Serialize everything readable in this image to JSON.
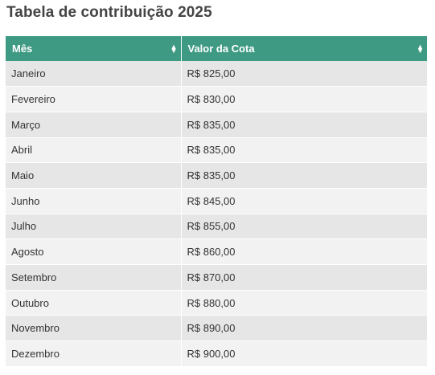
{
  "title": "Tabela de contribuição 2025",
  "table": {
    "headers": [
      "Mês",
      "Valor da Cota"
    ],
    "rows": [
      {
        "mes": "Janeiro",
        "valor": "R$ 825,00"
      },
      {
        "mes": "Fevereiro",
        "valor": "R$ 830,00"
      },
      {
        "mes": "Março",
        "valor": "R$ 835,00"
      },
      {
        "mes": "Abril",
        "valor": "R$ 835,00"
      },
      {
        "mes": "Maio",
        "valor": "R$ 835,00"
      },
      {
        "mes": "Junho",
        "valor": "R$ 845,00"
      },
      {
        "mes": "Julho",
        "valor": "R$ 855,00"
      },
      {
        "mes": "Agosto",
        "valor": "R$ 860,00"
      },
      {
        "mes": "Setembro",
        "valor": "R$ 870,00"
      },
      {
        "mes": "Outubro",
        "valor": "R$ 880,00"
      },
      {
        "mes": "Novembro",
        "valor": "R$ 890,00"
      },
      {
        "mes": "Dezembro",
        "valor": "R$ 900,00"
      }
    ]
  },
  "icons": {
    "sort": "sort-icon"
  },
  "colors": {
    "header_bg": "#3f9a84",
    "row_odd": "#e6e6e6",
    "row_even": "#f2f2f2",
    "title": "#444444"
  }
}
